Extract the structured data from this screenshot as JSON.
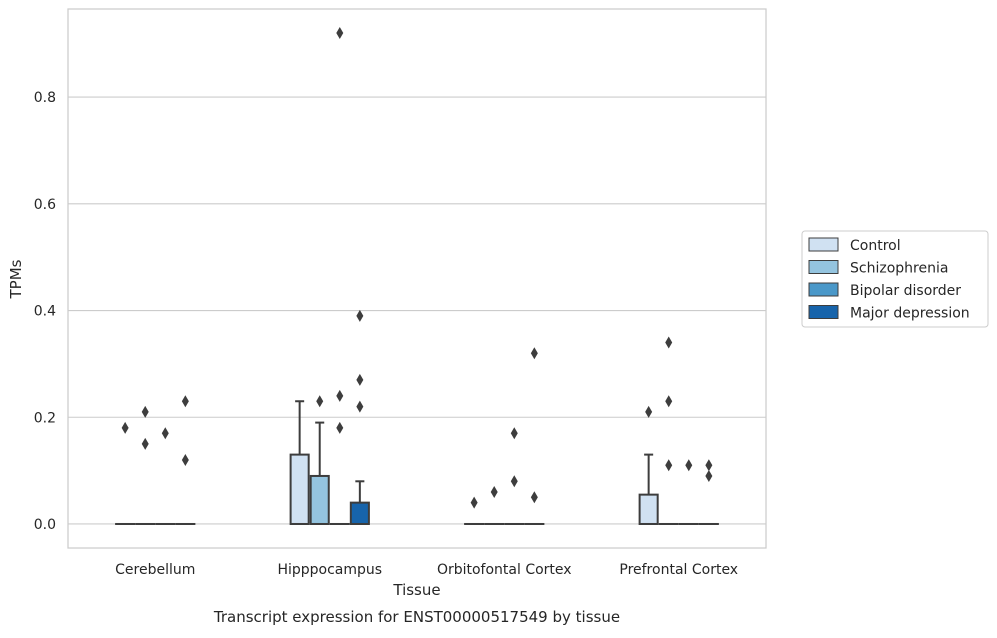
{
  "chart_data": {
    "type": "box",
    "title": "Transcript expression for ENST00000517549 by tissue",
    "xlabel": "Tissue",
    "ylabel": "TPMs",
    "categories": [
      "Cerebellum",
      "Hipppocampus",
      "Orbitofontal Cortex",
      "Prefrontal Cortex"
    ],
    "ylim": [
      -0.045,
      0.965
    ],
    "yticks": [
      0.0,
      0.2,
      0.4,
      0.6,
      0.8
    ],
    "ytick_labels": [
      "0.0",
      "0.2",
      "0.4",
      "0.6",
      "0.8"
    ],
    "grid": "horizontal",
    "legend_position": "right",
    "series": [
      {
        "name": "Control",
        "color": "#d0e1f2",
        "boxes": [
          {
            "q1": 0,
            "median": 0,
            "q3": 0,
            "whisker_low": 0,
            "whisker_high": 0,
            "outliers": [
              0.18
            ]
          },
          {
            "q1": 0,
            "median": 0,
            "q3": 0.13,
            "whisker_low": 0,
            "whisker_high": 0.23,
            "outliers": []
          },
          {
            "q1": 0,
            "median": 0,
            "q3": 0,
            "whisker_low": 0,
            "whisker_high": 0,
            "outliers": [
              0.04
            ]
          },
          {
            "q1": 0,
            "median": 0,
            "q3": 0.055,
            "whisker_low": 0,
            "whisker_high": 0.13,
            "outliers": [
              0.21
            ]
          }
        ]
      },
      {
        "name": "Schizophrenia",
        "color": "#94c4df",
        "boxes": [
          {
            "q1": 0,
            "median": 0,
            "q3": 0,
            "whisker_low": 0,
            "whisker_high": 0,
            "outliers": [
              0.21,
              0.15
            ]
          },
          {
            "q1": 0,
            "median": 0,
            "q3": 0.09,
            "whisker_low": 0,
            "whisker_high": 0.19,
            "outliers": [
              0.23
            ]
          },
          {
            "q1": 0,
            "median": 0,
            "q3": 0,
            "whisker_low": 0,
            "whisker_high": 0,
            "outliers": [
              0.06
            ]
          },
          {
            "q1": 0,
            "median": 0,
            "q3": 0,
            "whisker_low": 0,
            "whisker_high": 0,
            "outliers": [
              0.34,
              0.23,
              0.11
            ]
          }
        ]
      },
      {
        "name": "Bipolar disorder",
        "color": "#4a98c9",
        "boxes": [
          {
            "q1": 0,
            "median": 0,
            "q3": 0,
            "whisker_low": 0,
            "whisker_high": 0,
            "outliers": [
              0.17
            ]
          },
          {
            "q1": 0,
            "median": 0,
            "q3": 0,
            "whisker_low": 0,
            "whisker_high": 0,
            "outliers": [
              0.92,
              0.24,
              0.18
            ]
          },
          {
            "q1": 0,
            "median": 0,
            "q3": 0,
            "whisker_low": 0,
            "whisker_high": 0,
            "outliers": [
              0.17,
              0.08
            ]
          },
          {
            "q1": 0,
            "median": 0,
            "q3": 0,
            "whisker_low": 0,
            "whisker_high": 0,
            "outliers": [
              0.11
            ]
          }
        ]
      },
      {
        "name": "Major depression",
        "color": "#1764ab",
        "boxes": [
          {
            "q1": 0,
            "median": 0,
            "q3": 0,
            "whisker_low": 0,
            "whisker_high": 0,
            "outliers": [
              0.23,
              0.12
            ]
          },
          {
            "q1": 0,
            "median": 0,
            "q3": 0.04,
            "whisker_low": 0,
            "whisker_high": 0.08,
            "outliers": [
              0.39,
              0.27,
              0.22
            ]
          },
          {
            "q1": 0,
            "median": 0,
            "q3": 0,
            "whisker_low": 0,
            "whisker_high": 0,
            "outliers": [
              0.32,
              0.05
            ]
          },
          {
            "q1": 0,
            "median": 0,
            "q3": 0,
            "whisker_low": 0,
            "whisker_high": 0,
            "outliers": [
              0.11,
              0.09
            ]
          }
        ]
      }
    ]
  }
}
